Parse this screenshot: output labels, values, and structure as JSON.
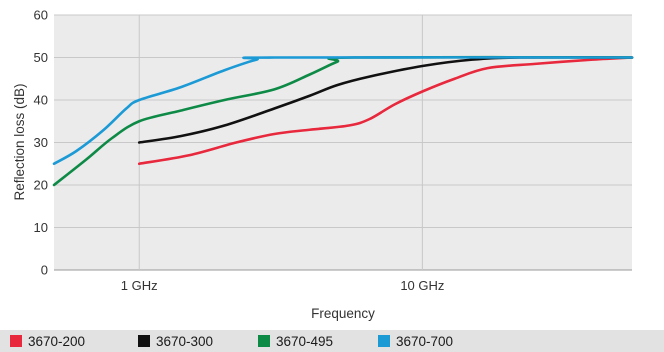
{
  "chart_data": {
    "type": "line",
    "xlabel": "Frequency",
    "ylabel": "Reflection loss (dB)",
    "x_scale": "log",
    "ylim": [
      0,
      60
    ],
    "yticks": [
      0,
      10,
      20,
      30,
      40,
      50,
      60
    ],
    "xticks": [
      {
        "value": 1,
        "label": "1 GHz"
      },
      {
        "value": 10,
        "label": "10 GHz"
      }
    ],
    "grid": true,
    "legend_position": "bottom",
    "series": [
      {
        "name": "3670-200",
        "color": "#e8283c",
        "points": [
          [
            1,
            25
          ],
          [
            1.5,
            27
          ],
          [
            2.2,
            30
          ],
          [
            3,
            32
          ],
          [
            4,
            33
          ],
          [
            5.5,
            34
          ],
          [
            6.5,
            35.5
          ],
          [
            8,
            39
          ],
          [
            10,
            42
          ],
          [
            13,
            45
          ],
          [
            17,
            47.5
          ],
          [
            25,
            48.5
          ],
          [
            40,
            49.5
          ],
          [
            55,
            50
          ]
        ]
      },
      {
        "name": "3670-300",
        "color": "#111111",
        "points": [
          [
            1,
            30
          ],
          [
            1.4,
            31.5
          ],
          [
            2,
            34
          ],
          [
            3,
            38
          ],
          [
            4,
            41
          ],
          [
            5,
            43.5
          ],
          [
            6.5,
            45.5
          ],
          [
            10,
            48
          ],
          [
            15,
            49.5
          ],
          [
            22,
            50
          ],
          [
            55,
            50
          ]
        ]
      },
      {
        "name": "3670-495",
        "color": "#0e8a47",
        "points": [
          [
            0.5,
            20
          ],
          [
            0.65,
            26
          ],
          [
            0.8,
            31
          ],
          [
            1,
            35
          ],
          [
            1.4,
            37.5
          ],
          [
            2,
            40
          ],
          [
            3,
            42.5
          ],
          [
            4,
            46
          ],
          [
            5,
            49
          ],
          [
            5.7,
            50
          ],
          [
            55,
            50
          ]
        ]
      },
      {
        "name": "3670-700",
        "color": "#1b9ad6",
        "points": [
          [
            0.5,
            25
          ],
          [
            0.6,
            28
          ],
          [
            0.75,
            33
          ],
          [
            0.9,
            38
          ],
          [
            1,
            40
          ],
          [
            1.4,
            43
          ],
          [
            2,
            47
          ],
          [
            2.6,
            49.5
          ],
          [
            3,
            50
          ],
          [
            55,
            50
          ]
        ]
      }
    ],
    "x_domain": [
      0.5,
      55
    ]
  }
}
